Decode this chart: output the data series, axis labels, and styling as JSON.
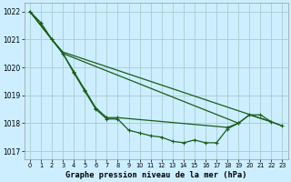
{
  "title": "Graphe pression niveau de la mer (hPa)",
  "background_color": "#cceeff",
  "grid_color": "#aacccc",
  "line_color": "#1a5c1a",
  "xlim": [
    -0.5,
    23.5
  ],
  "ylim": [
    1016.7,
    1022.3
  ],
  "yticks": [
    1017,
    1018,
    1019,
    1020,
    1021,
    1022
  ],
  "xticks": [
    0,
    1,
    2,
    3,
    4,
    5,
    6,
    7,
    8,
    9,
    10,
    11,
    12,
    13,
    14,
    15,
    16,
    17,
    18,
    19,
    20,
    21,
    22,
    23
  ],
  "line1_x": [
    0,
    1,
    2,
    3,
    4,
    5,
    6,
    7,
    8,
    9,
    10,
    11,
    12,
    13,
    14,
    15,
    16,
    17,
    18,
    19,
    20,
    21,
    22,
    23
  ],
  "line1_y": [
    1022.0,
    1021.6,
    1021.0,
    1020.5,
    1019.8,
    1019.15,
    1018.5,
    1018.15,
    1018.15,
    1017.75,
    1017.65,
    1017.55,
    1017.5,
    1017.35,
    1017.3,
    1017.4,
    1017.3,
    1017.3,
    1017.8,
    1018.0,
    1018.3,
    1018.3,
    1018.05,
    1017.9
  ],
  "line2_x": [
    0,
    2,
    3,
    19,
    20,
    22,
    23
  ],
  "line2_y": [
    1022.0,
    1021.0,
    1020.5,
    1018.0,
    1018.3,
    1018.05,
    1017.9
  ],
  "line3_x": [
    0,
    2,
    3,
    4,
    5,
    6,
    7,
    8,
    18,
    19
  ],
  "line3_y": [
    1022.0,
    1021.0,
    1020.5,
    1019.85,
    1019.2,
    1018.55,
    1018.2,
    1018.2,
    1017.85,
    1018.0
  ],
  "line4_x": [
    0,
    2,
    3,
    22
  ],
  "line4_y": [
    1022.0,
    1021.0,
    1020.55,
    1018.05
  ]
}
